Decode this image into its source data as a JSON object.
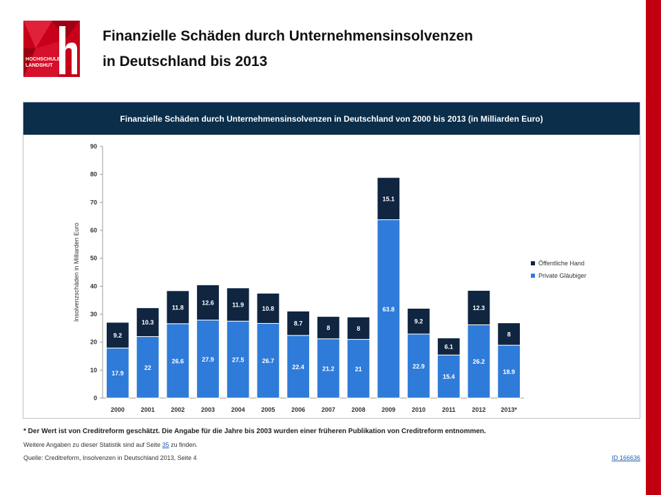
{
  "colors": {
    "accent": "#c00010",
    "header_bg": "#0b2e4a",
    "private": "#2f7bd9",
    "public": "#0f2540"
  },
  "logo": {
    "line1": "HOCHSCHULE",
    "line2": "LANDSHUT"
  },
  "slide": {
    "title_line1": "Finanzielle Schäden durch Unternehmensinsolvenzen",
    "title_line2": "in Deutschland bis 2013"
  },
  "chart_data": {
    "type": "bar",
    "stacked": true,
    "title": "Finanzielle Schäden durch Unternehmensinsolvenzen  in Deutschland  von 2000 bis 2013 (in Milliarden Euro)",
    "ylabel": "Insolvenzschäden in Milliarden Euro",
    "xlabel": "",
    "ylim": [
      0,
      90
    ],
    "yticks": [
      0,
      10,
      20,
      30,
      40,
      50,
      60,
      70,
      80,
      90
    ],
    "grid": false,
    "legend_position": "right",
    "categories": [
      "2000",
      "2001",
      "2002",
      "2003",
      "2004",
      "2005",
      "2006",
      "2007",
      "2008",
      "2009",
      "2010",
      "2011",
      "2012",
      "2013*"
    ],
    "series": [
      {
        "name": "Private Gläubiger",
        "color": "#2f7bd9",
        "values": [
          17.9,
          22,
          26.6,
          27.9,
          27.5,
          26.7,
          22.4,
          21.2,
          21,
          63.8,
          22.9,
          15.4,
          26.2,
          18.9
        ]
      },
      {
        "name": "Öffentliche Hand",
        "color": "#0f2540",
        "values": [
          9.2,
          10.3,
          11.8,
          12.6,
          11.9,
          10.8,
          8.7,
          8,
          8,
          15.1,
          9.2,
          6.1,
          12.3,
          8
        ]
      }
    ]
  },
  "footer": {
    "footnote": "* Der Wert ist von Creditreform geschätzt. Die Angabe für die Jahre bis 2003 wurden einer früheren Publikation von Creditreform entnommen.",
    "more_info_prefix": "Weitere Angaben zu dieser Statistik sind auf Seite ",
    "more_info_page": "35",
    "more_info_suffix": " zu finden.",
    "source": "Quelle: Creditreform, Insolvenzen in Deutschland 2013, Seite 4",
    "stat_id": "ID 166636"
  }
}
